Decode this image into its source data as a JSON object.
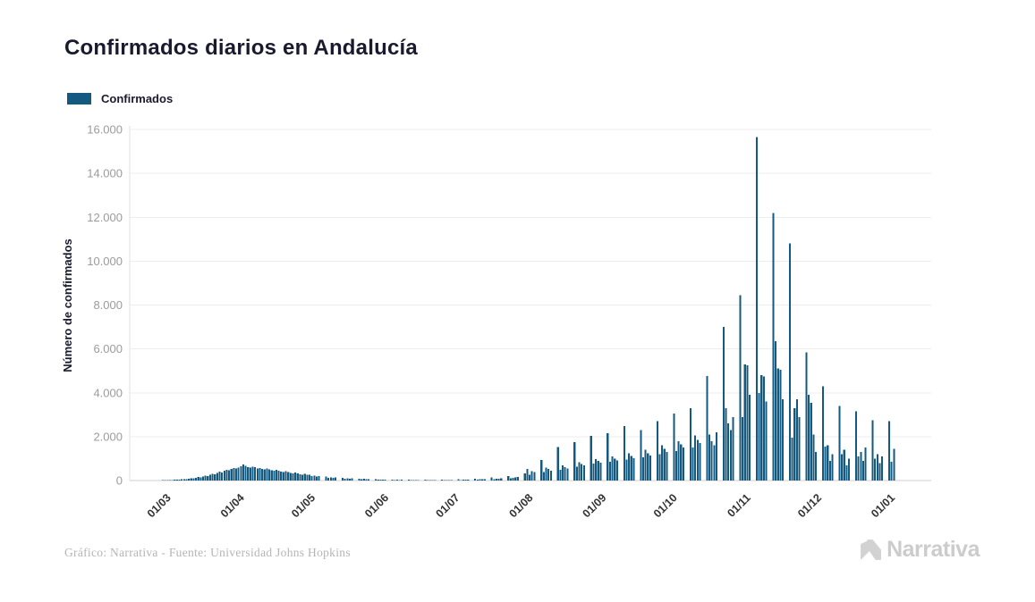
{
  "header": {
    "title": "Confirmados diarios en Andalucía"
  },
  "legend": {
    "items": [
      {
        "label": "Confirmados",
        "color": "#14597F"
      }
    ]
  },
  "footer": {
    "credit": "Gráfico: Narrativa - Fuente: Universidad Johns Hopkins",
    "brand": "Narrativa"
  },
  "chart_data": {
    "type": "bar",
    "title": "Confirmados diarios en Andalucía",
    "series_name": "Confirmados",
    "xlabel": "",
    "ylabel": "Número de confirmados",
    "ylim": [
      0,
      16000
    ],
    "grid": true,
    "legend_position": "top-left",
    "bar_color": "#14597F",
    "y_tick_labels": [
      "0",
      "2.000",
      "4.000",
      "6.000",
      "8.000",
      "10.000",
      "12.000",
      "14.000",
      "16.000"
    ],
    "x_tick_labels": [
      "01/03",
      "01/04",
      "01/05",
      "01/06",
      "01/07",
      "01/08",
      "01/09",
      "01/10",
      "01/11",
      "01/12",
      "01/01"
    ],
    "x_tick_day_index": [
      15,
      46,
      76,
      107,
      137,
      168,
      199,
      229,
      260,
      290,
      321
    ],
    "start_date": "2020-02-15",
    "values": [
      0,
      0,
      0,
      0,
      0,
      0,
      0,
      0,
      2,
      3,
      5,
      4,
      8,
      10,
      14,
      18,
      22,
      28,
      25,
      35,
      45,
      40,
      55,
      70,
      65,
      90,
      110,
      100,
      130,
      160,
      150,
      190,
      230,
      210,
      260,
      310,
      290,
      350,
      400,
      370,
      440,
      490,
      460,
      530,
      570,
      540,
      600,
      650,
      730,
      680,
      620,
      590,
      640,
      610,
      560,
      580,
      530,
      500,
      540,
      510,
      470,
      440,
      480,
      450,
      410,
      380,
      420,
      390,
      350,
      320,
      360,
      330,
      290,
      270,
      300,
      260,
      260,
      200,
      220,
      190,
      210,
      0,
      0,
      180,
      130,
      150,
      125,
      140,
      0,
      0,
      120,
      85,
      100,
      80,
      95,
      0,
      0,
      90,
      60,
      75,
      55,
      70,
      0,
      0,
      65,
      40,
      50,
      38,
      45,
      0,
      0,
      48,
      28,
      35,
      26,
      32,
      0,
      0,
      38,
      20,
      28,
      18,
      25,
      0,
      0,
      35,
      18,
      25,
      16,
      22,
      0,
      0,
      40,
      22,
      30,
      20,
      28,
      0,
      0,
      60,
      30,
      38,
      42,
      48,
      0,
      0,
      90,
      45,
      55,
      60,
      70,
      0,
      0,
      140,
      65,
      80,
      90,
      105,
      0,
      0,
      210,
      100,
      120,
      140,
      160,
      0,
      0,
      330,
      530,
      260,
      430,
      380,
      0,
      0,
      940,
      390,
      600,
      520,
      450,
      0,
      0,
      1520,
      480,
      700,
      620,
      560,
      0,
      0,
      1750,
      640,
      830,
      760,
      690,
      0,
      0,
      2040,
      780,
      980,
      900,
      820,
      0,
      0,
      2150,
      850,
      1100,
      1000,
      920,
      0,
      0,
      2480,
      950,
      1250,
      1120,
      1020,
      0,
      0,
      2300,
      1050,
      1400,
      1250,
      1150,
      0,
      0,
      2700,
      1200,
      1600,
      1450,
      1300,
      0,
      0,
      3050,
      1350,
      1800,
      1650,
      1500,
      0,
      0,
      3300,
      1500,
      2050,
      1850,
      1700,
      0,
      0,
      4770,
      2100,
      1800,
      1600,
      2200,
      0,
      0,
      7000,
      3300,
      2600,
      2300,
      2900,
      0,
      0,
      8450,
      2900,
      5300,
      5250,
      3900,
      0,
      0,
      15650,
      4000,
      4800,
      4750,
      3600,
      0,
      0,
      12200,
      6350,
      5100,
      5050,
      3700,
      0,
      0,
      10800,
      1950,
      3300,
      3700,
      2900,
      0,
      0,
      5850,
      3900,
      3550,
      2100,
      1300,
      0,
      0,
      4300,
      1550,
      1600,
      900,
      1200,
      0,
      0,
      3400,
      1200,
      1400,
      700,
      1000,
      0,
      0,
      3150,
      1100,
      1300,
      900,
      1500,
      0,
      0,
      2750,
      1000,
      1200,
      800,
      1100,
      0,
      0,
      2700,
      850,
      1450
    ]
  }
}
